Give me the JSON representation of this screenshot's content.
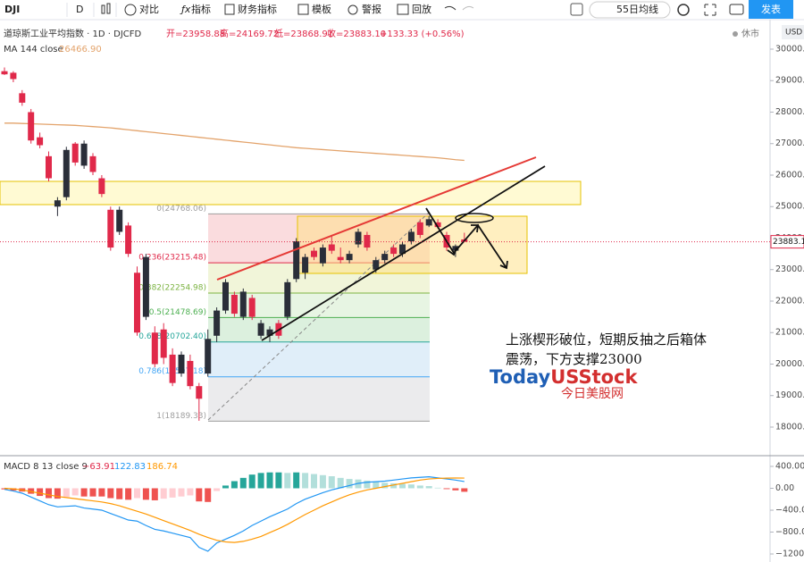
{
  "toolbar": {
    "symbol": "DJI",
    "interval": "D",
    "items": [
      "对比",
      "指标",
      "财务指标",
      "模板",
      "警报",
      "回放"
    ],
    "template": "55日均线",
    "publish": "发表"
  },
  "status": "休市",
  "currency": "USD",
  "header": {
    "open": "开=23958.88",
    "high": "高=24169.72",
    "low": "低=23868.91",
    "close": "收=23883.10",
    "change": "+133.33 (+0.56%)"
  },
  "annotations": {
    "comment": "上涨楔形破位，短期反抽之后箱体震荡，下方支撑23000",
    "watermark_a": "Today",
    "watermark_b": "USStock",
    "watermark_c": "今日美股网"
  },
  "chart_data": [
    {
      "type": "candlestick",
      "title": "道琼斯工业平均指数 · 1D · DJCFD",
      "categories": [
        null,
        null,
        null,
        null,
        null,
        null,
        null,
        null,
        null,
        null,
        null,
        null,
        null,
        null,
        null,
        null,
        null,
        null,
        null,
        null,
        null,
        null,
        null,
        null,
        null,
        null,
        null,
        null,
        null,
        null,
        null,
        null,
        null,
        null,
        null,
        null,
        null,
        null,
        null,
        null,
        null,
        null,
        null,
        null,
        null,
        null,
        null,
        null,
        null,
        null,
        null,
        null,
        null
      ],
      "open": [
        29300,
        29250,
        28600,
        28000,
        27200,
        26600,
        25000,
        25300,
        27000,
        26300,
        26600,
        25900,
        24900,
        24200,
        24400,
        22900,
        21500,
        21000,
        21100,
        20300,
        19700,
        20100,
        19300,
        19700,
        20900,
        21700,
        22200,
        21500,
        22100,
        20900,
        20900,
        21300,
        21500,
        22700,
        22900,
        23600,
        23200,
        23800,
        23400,
        23300,
        23800,
        24100,
        23000,
        23300,
        23700,
        23500,
        23900,
        24500,
        24400,
        24500,
        24100,
        23600,
        23958.88
      ],
      "high": [
        29420,
        29300,
        28700,
        28100,
        27350,
        26750,
        25300,
        26900,
        27050,
        27100,
        26700,
        26000,
        25000,
        25000,
        24500,
        23100,
        23500,
        21200,
        21300,
        20500,
        20400,
        20300,
        19400,
        21100,
        21800,
        22700,
        22300,
        22400,
        22200,
        21400,
        21200,
        21400,
        22700,
        24000,
        23500,
        23700,
        23800,
        24100,
        23700,
        23600,
        24300,
        24200,
        23400,
        23600,
        23800,
        23900,
        24300,
        24600,
        24700,
        24600,
        24200,
        23800,
        24169.72
      ],
      "low": [
        29180,
        28950,
        28200,
        27000,
        26850,
        25800,
        24700,
        25200,
        26300,
        26200,
        26000,
        25300,
        23600,
        24100,
        23400,
        20900,
        21400,
        19900,
        20000,
        19300,
        19600,
        19200,
        18200,
        19600,
        20700,
        21600,
        21500,
        21400,
        21400,
        20800,
        20700,
        20800,
        21400,
        22600,
        22700,
        23300,
        23100,
        23500,
        23200,
        23200,
        23700,
        23600,
        22900,
        23200,
        23400,
        23400,
        23800,
        24000,
        24350,
        24300,
        23600,
        23400,
        23868.91
      ],
      "close": [
        29200,
        29050,
        28300,
        27100,
        26950,
        25900,
        25200,
        26800,
        26400,
        27000,
        26100,
        25400,
        23700,
        24900,
        23500,
        21000,
        23400,
        20000,
        20200,
        19400,
        20300,
        19300,
        18900,
        20800,
        21700,
        22600,
        21600,
        22300,
        21500,
        21300,
        21100,
        20900,
        22600,
        23900,
        23400,
        23400,
        23700,
        23600,
        23300,
        23500,
        24200,
        23700,
        23300,
        23500,
        23500,
        23800,
        24200,
        24100,
        24600,
        24350,
        23700,
        23750,
        23883.1
      ],
      "up_color": "#2a2e39",
      "down_color": "#e0294a",
      "overlays": [
        {
          "name": "MA 144 close",
          "color": "#e3a36b",
          "value_label": "26466.90",
          "values": [
            27650,
            27650,
            27640,
            27630,
            27620,
            27610,
            27600,
            27590,
            27580,
            27560,
            27540,
            27520,
            27500,
            27470,
            27440,
            27410,
            27380,
            27350,
            27320,
            27290,
            27260,
            27230,
            27200,
            27170,
            27140,
            27110,
            27080,
            27050,
            27020,
            26990,
            26960,
            26930,
            26900,
            26870,
            26850,
            26830,
            26810,
            26790,
            26770,
            26750,
            26730,
            26710,
            26690,
            26670,
            26650,
            26630,
            26610,
            26590,
            26570,
            26550,
            26520,
            26490,
            26466.9
          ]
        }
      ],
      "fibonacci": {
        "levels": [
          {
            "value": 24768.06,
            "label": "0(24768.06)",
            "color": "#9e9e9e",
            "fill": "#f9d3d6"
          },
          {
            "value": 23215.48,
            "label": "0.236(23215.48)",
            "color": "#e0294a",
            "fill": "#eef3cf"
          },
          {
            "value": 22254.98,
            "label": "0.382(22254.98)",
            "color": "#7cb342",
            "fill": "#e1f2dc"
          },
          {
            "value": 21478.69,
            "label": "0.5(21478.69)",
            "color": "#4caf50",
            "fill": "#d3ecd6"
          },
          {
            "value": 20702.4,
            "label": "0.618(20702.40)",
            "color": "#26a69a",
            "fill": "#d8eaf8"
          },
          {
            "value": 19597.18,
            "label": "0.786(19597.18)",
            "color": "#42a5f5",
            "fill": "#e6e6e8"
          },
          {
            "value": 18189.33,
            "label": "1(18189.33)",
            "color": "#9e9e9e"
          }
        ]
      },
      "last": {
        "value": 23883.1,
        "label": "23883.10",
        "color": "#e0294a"
      },
      "ylim": [
        17092,
        30936
      ],
      "yticks": [
        {
          "value": 30000,
          "label": "30000.00"
        },
        {
          "value": 29000,
          "label": "29000.00"
        },
        {
          "value": 28000,
          "label": "28000.00"
        },
        {
          "value": 27000,
          "label": "27000.00"
        },
        {
          "value": 26000,
          "label": "26000.00"
        },
        {
          "value": 25000,
          "label": "25000.00"
        },
        {
          "value": 24000,
          "label": "24000.00"
        },
        {
          "value": 23000,
          "label": "23000.00"
        },
        {
          "value": 22000,
          "label": "22000.00"
        },
        {
          "value": 21000,
          "label": "21000.00"
        },
        {
          "value": 20000,
          "label": "20000.00"
        },
        {
          "value": 19000,
          "label": "19000.00"
        },
        {
          "value": 18000,
          "label": "18000.00"
        }
      ]
    },
    {
      "type": "macd",
      "title": "MACD 8 13 close 9",
      "header_values": [
        "−63.91",
        "122.83",
        "186.74"
      ],
      "histogram": {
        "values": [
          -20,
          -40,
          -60,
          -100,
          -140,
          -180,
          -190,
          -160,
          -130,
          -150,
          -150,
          -150,
          -180,
          -200,
          -210,
          -180,
          -210,
          -220,
          -190,
          -170,
          -150,
          -130,
          -240,
          -250,
          -50,
          50,
          130,
          190,
          250,
          280,
          290,
          290,
          280,
          290,
          280,
          260,
          240,
          220,
          190,
          170,
          160,
          140,
          120,
          100,
          90,
          80,
          70,
          50,
          40,
          10,
          -15,
          -38,
          -63.91
        ],
        "colors": {
          "pos_up": "#26a69a",
          "pos_down": "#b2dfdb",
          "neg_down": "#ef5350",
          "neg_up": "#ffcdd2"
        }
      },
      "series": [
        {
          "color": "#2196f3",
          "values": [
            -20,
            -50,
            -90,
            -160,
            -230,
            -300,
            -340,
            -330,
            -320,
            -360,
            -380,
            -400,
            -460,
            -520,
            -580,
            -600,
            -680,
            -750,
            -780,
            -820,
            -860,
            -900,
            -1080,
            -1150,
            -1000,
            -930,
            -860,
            -780,
            -680,
            -600,
            -520,
            -450,
            -380,
            -280,
            -200,
            -140,
            -80,
            -30,
            10,
            50,
            90,
            110,
            120,
            130,
            150,
            170,
            190,
            200,
            210,
            190,
            170,
            150,
            122.83
          ]
        },
        {
          "color": "#ff9800",
          "values": [
            0,
            -10,
            -30,
            -60,
            -90,
            -120,
            -150,
            -170,
            -190,
            -210,
            -230,
            -250,
            -280,
            -320,
            -370,
            -420,
            -470,
            -530,
            -590,
            -650,
            -710,
            -770,
            -840,
            -900,
            -950,
            -980,
            -990,
            -970,
            -930,
            -880,
            -810,
            -740,
            -660,
            -570,
            -480,
            -400,
            -320,
            -250,
            -180,
            -120,
            -70,
            -30,
            0,
            30,
            60,
            90,
            120,
            150,
            170,
            180,
            185,
            188,
            186.74
          ]
        }
      ],
      "ylim": [
        -1347,
        563
      ],
      "yticks": [
        {
          "value": 400,
          "label": "400.00"
        },
        {
          "value": 0,
          "label": "0.00"
        },
        {
          "value": -400,
          "label": "−400.00"
        },
        {
          "value": -800,
          "label": "−800.00"
        },
        {
          "value": -1200,
          "label": "−1200.00"
        }
      ]
    }
  ]
}
